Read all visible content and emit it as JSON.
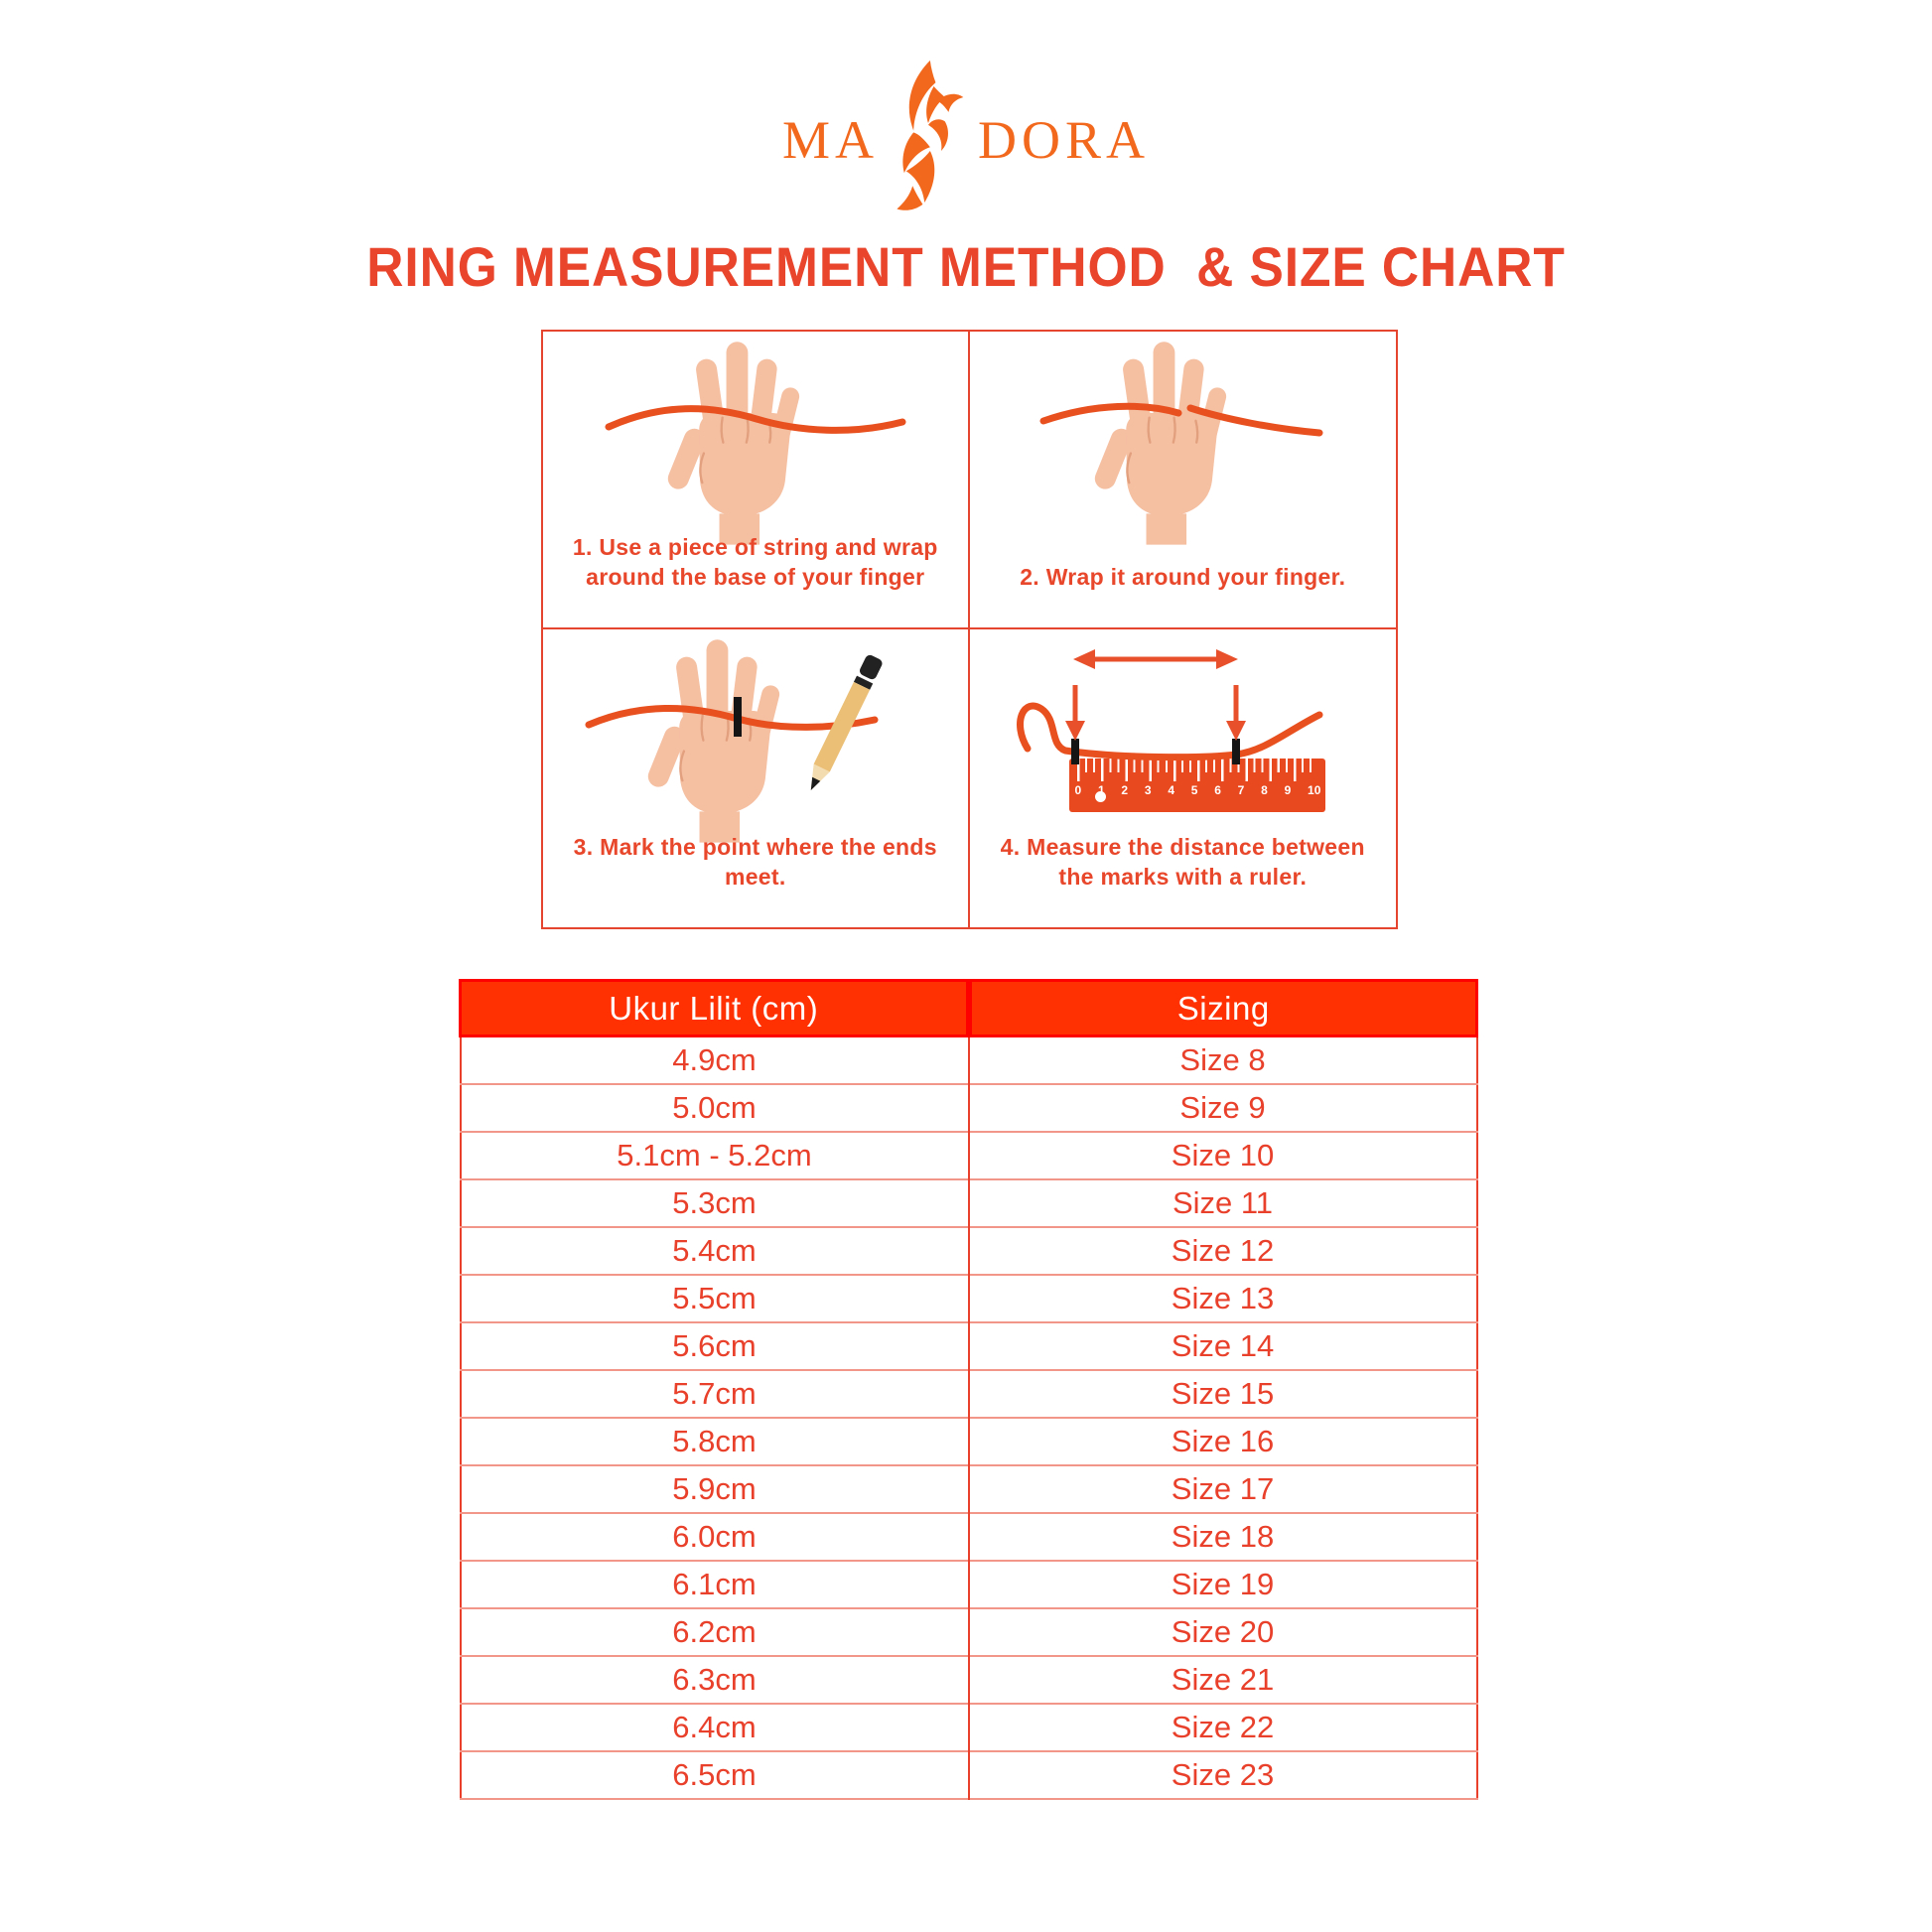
{
  "brand": {
    "left": "MA",
    "right": "DORA"
  },
  "title": "RING MEASUREMENT METHOD  & SIZE CHART",
  "instructions": {
    "panels": [
      {
        "caption": "1. Use a piece of string and wrap around the base of your finger"
      },
      {
        "caption": "2. Wrap it around your finger."
      },
      {
        "caption": "3. Mark the point where the ends meet."
      },
      {
        "caption": "4. Measure the distance between the marks with a ruler."
      }
    ],
    "ruler_numbers": [
      "0",
      "1",
      "2",
      "3",
      "4",
      "5",
      "6",
      "7",
      "8",
      "9",
      "10"
    ]
  },
  "table": {
    "headers": [
      "Ukur Lilit (cm)",
      "Sizing"
    ],
    "rows": [
      {
        "ukur": "4.9cm",
        "size": "Size 8"
      },
      {
        "ukur": "5.0cm",
        "size": "Size 9"
      },
      {
        "ukur": "5.1cm - 5.2cm",
        "size": "Size 10"
      },
      {
        "ukur": "5.3cm",
        "size": "Size 11"
      },
      {
        "ukur": "5.4cm",
        "size": "Size 12"
      },
      {
        "ukur": "5.5cm",
        "size": "Size 13"
      },
      {
        "ukur": "5.6cm",
        "size": "Size 14"
      },
      {
        "ukur": "5.7cm",
        "size": "Size 15"
      },
      {
        "ukur": "5.8cm",
        "size": "Size 16"
      },
      {
        "ukur": "5.9cm",
        "size": "Size 17"
      },
      {
        "ukur": "6.0cm",
        "size": "Size 18"
      },
      {
        "ukur": "6.1cm",
        "size": "Size 19"
      },
      {
        "ukur": "6.2cm",
        "size": "Size 20"
      },
      {
        "ukur": "6.3cm",
        "size": "Size 21"
      },
      {
        "ukur": "6.4cm",
        "size": "Size 22"
      },
      {
        "ukur": "6.5cm",
        "size": "Size 23"
      }
    ]
  },
  "colors": {
    "logo_orange": "#F2691D",
    "title_red": "#E8452C",
    "panel_border": "#E5452E",
    "caption_red": "#E8472B",
    "string_orange": "#E8501F",
    "hand_skin": "#F5BFA2",
    "table_header_bg": "#FF3102",
    "table_header_line": "#FF0000",
    "table_text_red": "#E8402A"
  }
}
